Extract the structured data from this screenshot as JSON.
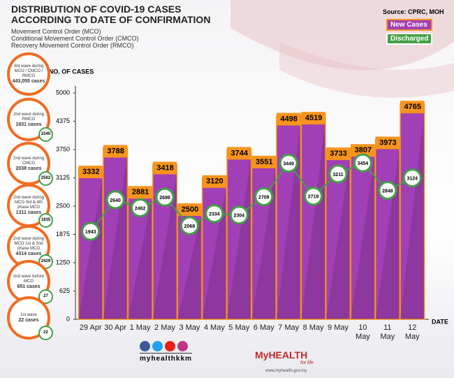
{
  "header": {
    "title": [
      "DISTRIBUTION OF COVID-19 CASES",
      "ACCORDING TO DATE OF CONFIRMATION"
    ],
    "subtitle": [
      "Movement Control Order (MCO)",
      "Conditional Movement Control Order (CMCO)",
      "Recovery Movement Control Order (RMCO)"
    ],
    "source": "Source: CPRC, MOH"
  },
  "summary": [
    {
      "label": "3rd wave during MCO / CMCO / RMCO",
      "cases": "443,055 cases"
    },
    {
      "label": "2nd wave during RMCO",
      "cases": "1831 cases",
      "discharged": "2340"
    },
    {
      "label": "2nd wave during CMCO",
      "cases": "2038 cases",
      "discharged": "2562"
    },
    {
      "label": "2nd wave during MCO 3rd & 4th phase MCO",
      "cases": "1311 cases",
      "discharged": "1935"
    },
    {
      "label": "2nd wave during MCO 1st & 2nd phase MCO",
      "cases": "4314 cases",
      "discharged": "2429"
    },
    {
      "label": "2nd wave before MCO",
      "cases": "651 cases",
      "discharged": "27"
    },
    {
      "label": "1st wave",
      "cases": "22 cases",
      "discharged": "22"
    }
  ],
  "chart_data": {
    "type": "bar",
    "y_label": "NO. OF CASES",
    "x_label": "DATE",
    "categories": [
      "29 Apr",
      "30 Apr",
      "1 May",
      "2 May",
      "3 May",
      "4 May",
      "5 May",
      "6 May",
      "7 May",
      "8 May",
      "9 May",
      "10 May",
      "11 May",
      "12 May"
    ],
    "series": [
      {
        "name": "New Cases",
        "color": "#a13fb6",
        "type": "bar",
        "values": [
          3332,
          3788,
          2881,
          3418,
          2500,
          3120,
          3744,
          3551,
          4498,
          4519,
          3733,
          3807,
          3973,
          4765
        ]
      },
      {
        "name": "Discharged",
        "color": "#43a047",
        "type": "line",
        "values": [
          1943,
          2640,
          2462,
          2698,
          2068,
          2334,
          2304,
          2709,
          3449,
          2719,
          3211,
          3454,
          2848,
          3124
        ]
      }
    ],
    "ylim": [
      0,
      5000
    ],
    "yticks": [
      0,
      625,
      1250,
      1875,
      2500,
      3125,
      3750,
      4375,
      5000
    ]
  },
  "footer": {
    "handle": "myhealthkkm",
    "brand": "MyHEALTH",
    "tagline": "for life",
    "url": "www.myhealth.gov.my"
  }
}
